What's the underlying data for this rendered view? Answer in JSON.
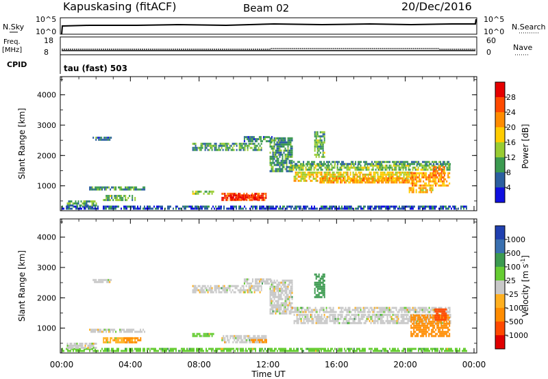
{
  "header": {
    "station": "Kapuskasing (fitACF)",
    "beam": "Beam 02",
    "date": "20/Dec/2016"
  },
  "summary_panels": {
    "nsky_label": "N.Sky",
    "nsky_ticks": [
      "10^5",
      "10^0"
    ],
    "nsearch_label": "N.Search",
    "nsearch_ticks": [
      "10^5",
      "10^0"
    ],
    "freq_label_line1": "Freq.",
    "freq_label_line2": "[MHz]",
    "freq_ticks": [
      "18",
      "8"
    ],
    "nave_label": "Nave",
    "nave_ticks": [
      "60",
      "0"
    ],
    "cpid_label": "CPID",
    "cpid_value": "tau (fast) 503"
  },
  "axes": {
    "ylabel": "Slant Range [km]",
    "yticks": [
      "4000",
      "3000",
      "2000",
      "1000"
    ],
    "xlabel": "Time UT",
    "xticks": [
      "00:00",
      "04:00",
      "08:00",
      "12:00",
      "16:00",
      "20:00",
      "00:00"
    ]
  },
  "power_colorbar": {
    "label": "Power [dB]",
    "ticks": [
      "28",
      "24",
      "20",
      "16",
      "12",
      "8",
      "4"
    ],
    "colors": [
      "#e60000",
      "#ff4a00",
      "#ff8c00",
      "#ffcc00",
      "#99cc33",
      "#3c9a50",
      "#2c5fa0",
      "#1010e0"
    ]
  },
  "velocity_colorbar": {
    "label": "Velocity [m s^-1]",
    "ticks": [
      "1000",
      "500",
      "100",
      "25",
      "-25",
      "-100",
      "-500",
      "-1000"
    ],
    "colors": [
      "#2040b0",
      "#3a70b0",
      "#3c9a50",
      "#66cc33",
      "#c8c8c8",
      "#ffb020",
      "#ff8c00",
      "#ff4a00",
      "#e00000"
    ]
  },
  "chart_data": [
    {
      "type": "heatmap",
      "panel": "power",
      "x_unit": "hours UT",
      "xlim": [
        0,
        24
      ],
      "ylim": [
        180,
        4600
      ],
      "patches": [
        {
          "t0": 0.0,
          "t1": 23.6,
          "r0": 250,
          "r1": 350,
          "level": 5
        },
        {
          "t0": 0.3,
          "t1": 2.0,
          "r0": 380,
          "r1": 520,
          "level": 10
        },
        {
          "t0": 1.6,
          "t1": 4.8,
          "r0": 880,
          "r1": 980,
          "level": 9
        },
        {
          "t0": 2.4,
          "t1": 4.3,
          "r0": 520,
          "r1": 700,
          "level": 12
        },
        {
          "t0": 1.8,
          "t1": 2.9,
          "r0": 2520,
          "r1": 2620,
          "level": 8
        },
        {
          "t0": 7.6,
          "t1": 11.6,
          "r0": 2180,
          "r1": 2420,
          "level": 10
        },
        {
          "t0": 10.6,
          "t1": 12.2,
          "r0": 2440,
          "r1": 2640,
          "level": 8
        },
        {
          "t0": 7.6,
          "t1": 8.8,
          "r0": 720,
          "r1": 840,
          "level": 14
        },
        {
          "t0": 9.3,
          "t1": 11.9,
          "r0": 520,
          "r1": 770,
          "level": 27
        },
        {
          "t0": 9.8,
          "t1": 11.5,
          "r0": 560,
          "r1": 720,
          "level": 29
        },
        {
          "t0": 12.1,
          "t1": 13.4,
          "r0": 1500,
          "r1": 2600,
          "level": 9
        },
        {
          "t0": 13.3,
          "t1": 22.6,
          "r0": 1520,
          "r1": 1700,
          "level": 13
        },
        {
          "t0": 13.4,
          "t1": 22.6,
          "r0": 1700,
          "r1": 1820,
          "level": 9
        },
        {
          "t0": 13.5,
          "t1": 20.5,
          "r0": 1150,
          "r1": 1470,
          "level": 17
        },
        {
          "t0": 15.0,
          "t1": 20.5,
          "r0": 1120,
          "r1": 1280,
          "level": 21
        },
        {
          "t0": 20.3,
          "t1": 22.6,
          "r0": 1000,
          "r1": 1450,
          "level": 21
        },
        {
          "t0": 20.2,
          "t1": 21.6,
          "r0": 760,
          "r1": 960,
          "level": 19
        },
        {
          "t0": 21.6,
          "t1": 22.3,
          "r0": 1250,
          "r1": 1650,
          "level": 23
        },
        {
          "t0": 14.7,
          "t1": 15.3,
          "r0": 1950,
          "r1": 2800,
          "level": 12
        }
      ]
    },
    {
      "type": "heatmap",
      "panel": "velocity",
      "x_unit": "hours UT",
      "xlim": [
        0,
        24
      ],
      "ylim": [
        180,
        4600
      ],
      "patches": [
        {
          "t0": 0.0,
          "t1": 23.6,
          "r0": 250,
          "r1": 350,
          "value": 60
        },
        {
          "t0": 0.3,
          "t1": 2.0,
          "r0": 380,
          "r1": 520,
          "value": 0
        },
        {
          "t0": 1.6,
          "t1": 4.8,
          "r0": 880,
          "r1": 980,
          "value": 0
        },
        {
          "t0": 2.4,
          "t1": 4.3,
          "r0": 520,
          "r1": 700,
          "value": -40
        },
        {
          "t0": 3.6,
          "t1": 4.6,
          "r0": 560,
          "r1": 700,
          "value": -120
        },
        {
          "t0": 1.8,
          "t1": 2.9,
          "r0": 2520,
          "r1": 2620,
          "value": 0
        },
        {
          "t0": 7.6,
          "t1": 11.6,
          "r0": 2180,
          "r1": 2420,
          "value": 0
        },
        {
          "t0": 10.6,
          "t1": 12.2,
          "r0": 2440,
          "r1": 2640,
          "value": 0
        },
        {
          "t0": 7.6,
          "t1": 8.8,
          "r0": 720,
          "r1": 840,
          "value": 60
        },
        {
          "t0": 9.3,
          "t1": 11.9,
          "r0": 520,
          "r1": 770,
          "value": 0
        },
        {
          "t0": 11.0,
          "t1": 11.9,
          "r0": 520,
          "r1": 640,
          "value": -150
        },
        {
          "t0": 12.1,
          "t1": 13.4,
          "r0": 1500,
          "r1": 2600,
          "value": 0
        },
        {
          "t0": 13.3,
          "t1": 22.6,
          "r0": 1520,
          "r1": 1700,
          "value": 0
        },
        {
          "t0": 13.5,
          "t1": 22.6,
          "r0": 1150,
          "r1": 1470,
          "value": 0
        },
        {
          "t0": 20.3,
          "t1": 22.6,
          "r0": 760,
          "r1": 1450,
          "value": -300
        },
        {
          "t0": 21.7,
          "t1": 22.4,
          "r0": 1300,
          "r1": 1650,
          "value": -700
        },
        {
          "t0": 14.7,
          "t1": 15.3,
          "r0": 2000,
          "r1": 2800,
          "value": 300
        }
      ]
    }
  ]
}
